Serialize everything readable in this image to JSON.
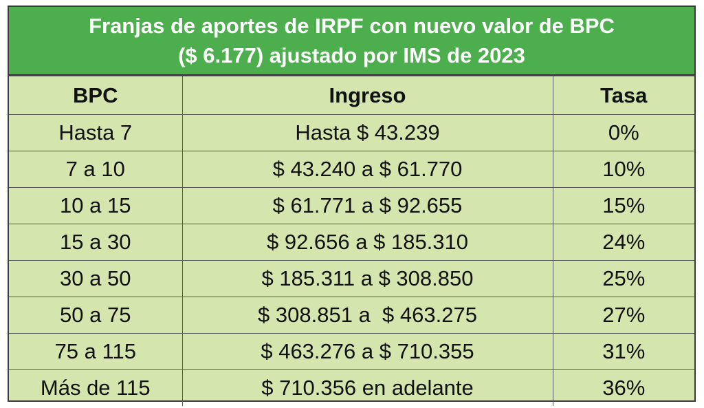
{
  "title": {
    "line1": "Franjas de aportes de IRPF con nuevo valor de BPC",
    "line2": "($ 6.177) ajustado por IMS de 2023"
  },
  "headers": [
    "BPC",
    "Ingreso",
    "Tasa"
  ],
  "rows": [
    {
      "bpc": "Hasta 7",
      "ingreso": "Hasta $ 43.239",
      "tasa": "0%"
    },
    {
      "bpc": "7 a 10",
      "ingreso": "$ 43.240 a $ 61.770",
      "tasa": "10%"
    },
    {
      "bpc": "10 a 15",
      "ingreso": "$ 61.771 a $ 92.655",
      "tasa": "15%"
    },
    {
      "bpc": "15 a 30",
      "ingreso": "$ 92.656 a $ 185.310",
      "tasa": "24%"
    },
    {
      "bpc": "30 a 50",
      "ingreso": "$ 185.311 a $ 308.850",
      "tasa": "25%"
    },
    {
      "bpc": "50 a 75",
      "ingreso": "$ 308.851 a  $ 463.275",
      "tasa": "27%"
    },
    {
      "bpc": "75 a 115",
      "ingreso": "$ 463.276 a $ 710.355",
      "tasa": "31%"
    },
    {
      "bpc": "Más de 115",
      "ingreso": "$ 710.356 en adelante",
      "tasa": "36%"
    }
  ],
  "colors": {
    "header_bg": "#4cae4c",
    "table_bg": "#d4e5ae",
    "border": "#3a3a3a"
  }
}
